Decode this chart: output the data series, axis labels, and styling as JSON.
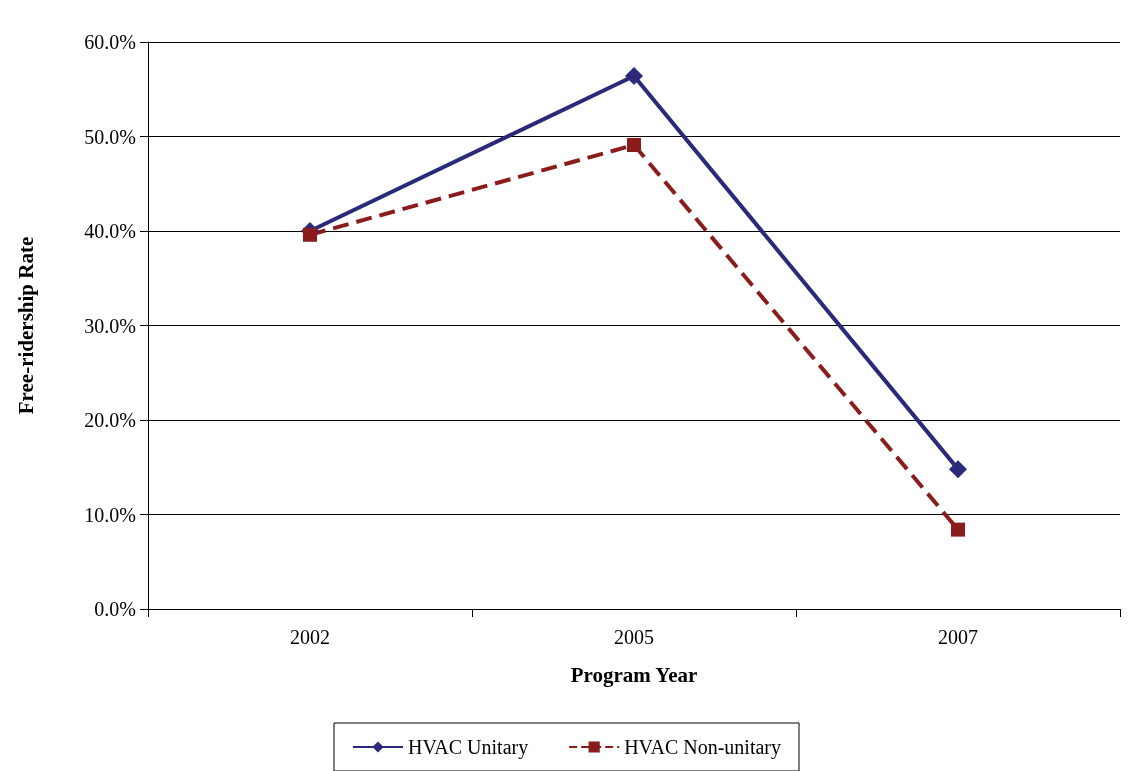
{
  "chart_data": {
    "type": "line",
    "xlabel": "Program Year",
    "ylabel": "Free-ridership Rate",
    "categories": [
      "2002",
      "2005",
      "2007"
    ],
    "series": [
      {
        "name": "HVAC Unitary",
        "color": "#2b2a7a",
        "values": [
          40.0,
          56.4,
          14.8
        ],
        "marker": "diamond",
        "line_style": "solid"
      },
      {
        "name": "HVAC Non-unitary",
        "color": "#8b1c1c",
        "values": [
          39.6,
          49.1,
          8.4
        ],
        "marker": "square",
        "line_style": "dashed"
      }
    ],
    "ylim": [
      0,
      60
    ],
    "yticks": [
      {
        "value": 0,
        "label": "0.0%"
      },
      {
        "value": 10,
        "label": "10.0%"
      },
      {
        "value": 20,
        "label": "20.0%"
      },
      {
        "value": 30,
        "label": "30.0%"
      },
      {
        "value": 40,
        "label": "40.0%"
      },
      {
        "value": 50,
        "label": "50.0%"
      },
      {
        "value": 60,
        "label": "60.0%"
      }
    ],
    "grid": "y",
    "legend": "bottom"
  }
}
